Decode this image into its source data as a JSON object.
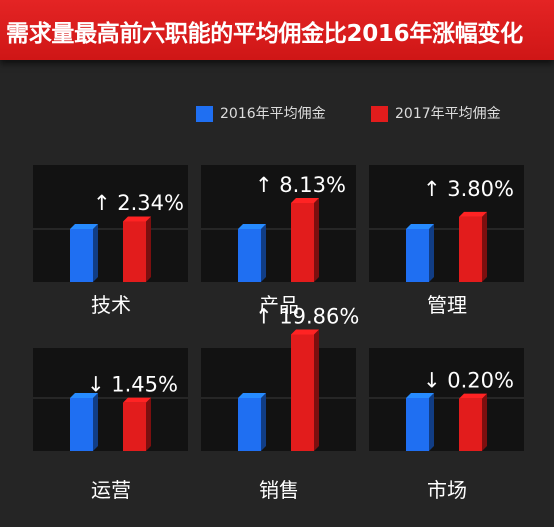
{
  "title": "需求量最高前六职能的平均佣金比2016年涨幅变化",
  "colors": {
    "series_2016": "#1f6ff2",
    "series_2017": "#e21c1c",
    "title_bg": "#d91b1b",
    "background": "#252525",
    "panel": "#121212"
  },
  "chart_data": {
    "type": "bar",
    "title": "需求量最高前六职能的平均佣金比2016年涨幅变化",
    "legend_position": "top-right",
    "categories": [
      "技术",
      "产品",
      "管理",
      "运营",
      "销售",
      "市场"
    ],
    "series": [
      {
        "name": "2016年平均佣金",
        "values": [
          1.0,
          1.0,
          1.0,
          1.0,
          1.0,
          1.0
        ]
      },
      {
        "name": "2017年平均佣金",
        "values": [
          1.0234,
          1.0813,
          1.038,
          0.9855,
          1.1986,
          0.998
        ]
      }
    ],
    "changes": [
      {
        "category": "技术",
        "arrow": "↑",
        "text": "2.34%",
        "value": 2.34
      },
      {
        "category": "产品",
        "arrow": "↑",
        "text": "8.13%",
        "value": 8.13
      },
      {
        "category": "管理",
        "arrow": "↑",
        "text": "3.80%",
        "value": 3.8
      },
      {
        "category": "运营",
        "arrow": "↓",
        "text": "1.45%",
        "value": -1.45
      },
      {
        "category": "销售",
        "arrow": "↑",
        "text": "19.86%",
        "value": 19.86
      },
      {
        "category": "市场",
        "arrow": "↓",
        "text": "0.20%",
        "value": -0.2
      }
    ]
  }
}
